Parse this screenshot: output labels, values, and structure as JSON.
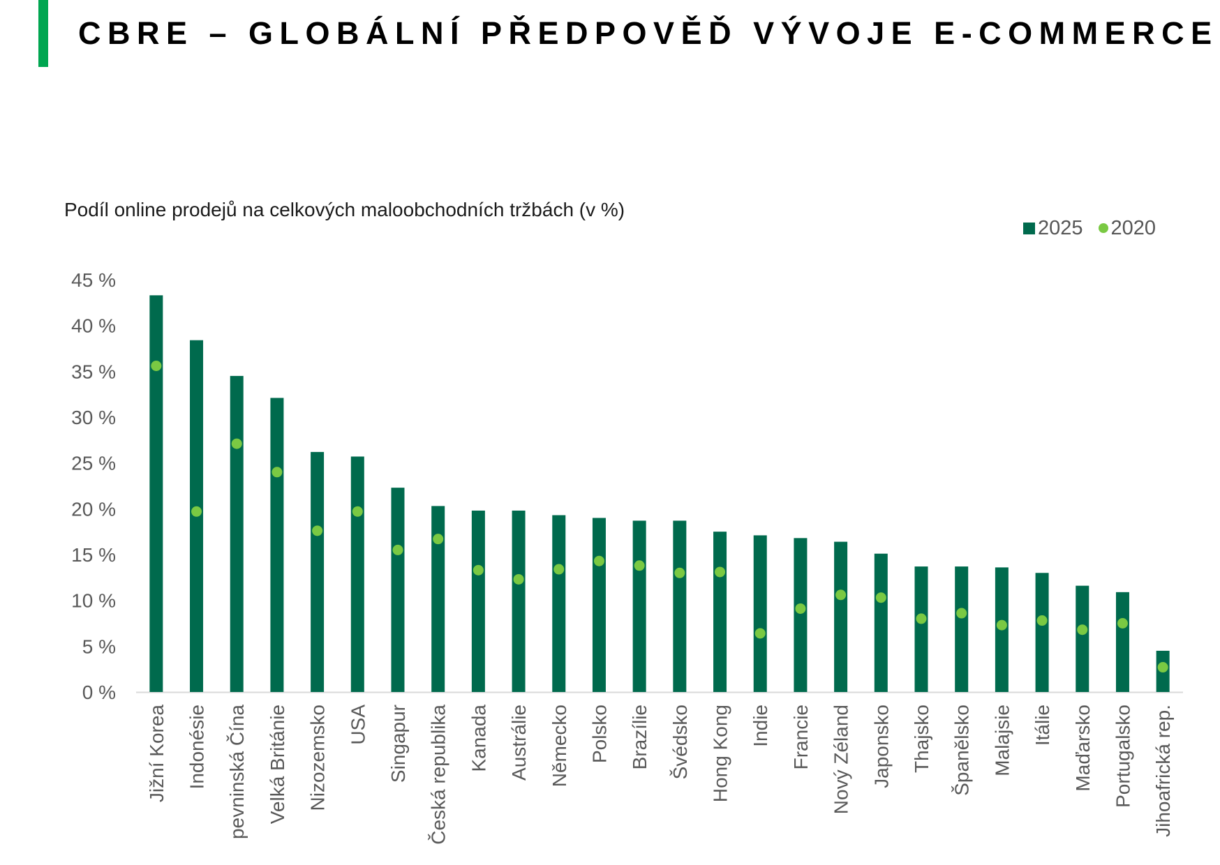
{
  "header": {
    "title": "CBRE – GLOBÁLNÍ PŘEDPOVĚĎ VÝVOJE E-COMMERCE",
    "accent_color": "#00A650"
  },
  "chart_data": {
    "type": "bar",
    "title": "Podíl online prodejů na celkových maloobchodních tržbách (v %)",
    "xlabel": "",
    "ylabel": "",
    "ylim": [
      0,
      45
    ],
    "yticks": [
      "0 %",
      "5 %",
      "10 %",
      "15 %",
      "20 %",
      "25 %",
      "30 %",
      "35 %",
      "40 %",
      "45 %"
    ],
    "grid": false,
    "legend_position": "top-right",
    "categories": [
      "Jižní Korea",
      "Indonésie",
      "pevninská Čína",
      "Velká Británie",
      "Nizozemsko",
      "USA",
      "Singapur",
      "Česká republika",
      "Kanada",
      "Austrálie",
      "Německo",
      "Polsko",
      "Brazílie",
      "Švédsko",
      "Hong Kong",
      "Indie",
      "Francie",
      "Nový Zéland",
      "Japonsko",
      "Thajsko",
      "Španělsko",
      "Malajsie",
      "Itálie",
      "Maďarsko",
      "Portugalsko",
      "Jihoafrická rep."
    ],
    "series": [
      {
        "name": "2025",
        "mark": "bar",
        "color": "#006A4D",
        "values": [
          43.3,
          38.4,
          34.5,
          32.1,
          26.2,
          25.7,
          22.3,
          20.3,
          19.8,
          19.8,
          19.3,
          19.0,
          18.7,
          18.7,
          17.5,
          17.1,
          16.8,
          16.4,
          15.1,
          13.7,
          13.7,
          13.6,
          13.0,
          11.6,
          10.9,
          4.5
        ]
      },
      {
        "name": "2020",
        "mark": "dot",
        "color": "#7AC943",
        "values": [
          35.6,
          19.7,
          27.1,
          24.0,
          17.6,
          19.7,
          15.5,
          16.7,
          13.3,
          12.3,
          13.4,
          14.3,
          13.8,
          13.0,
          13.1,
          6.4,
          9.1,
          10.6,
          10.3,
          8.0,
          8.6,
          7.3,
          7.8,
          6.8,
          7.5,
          2.7
        ]
      }
    ]
  }
}
